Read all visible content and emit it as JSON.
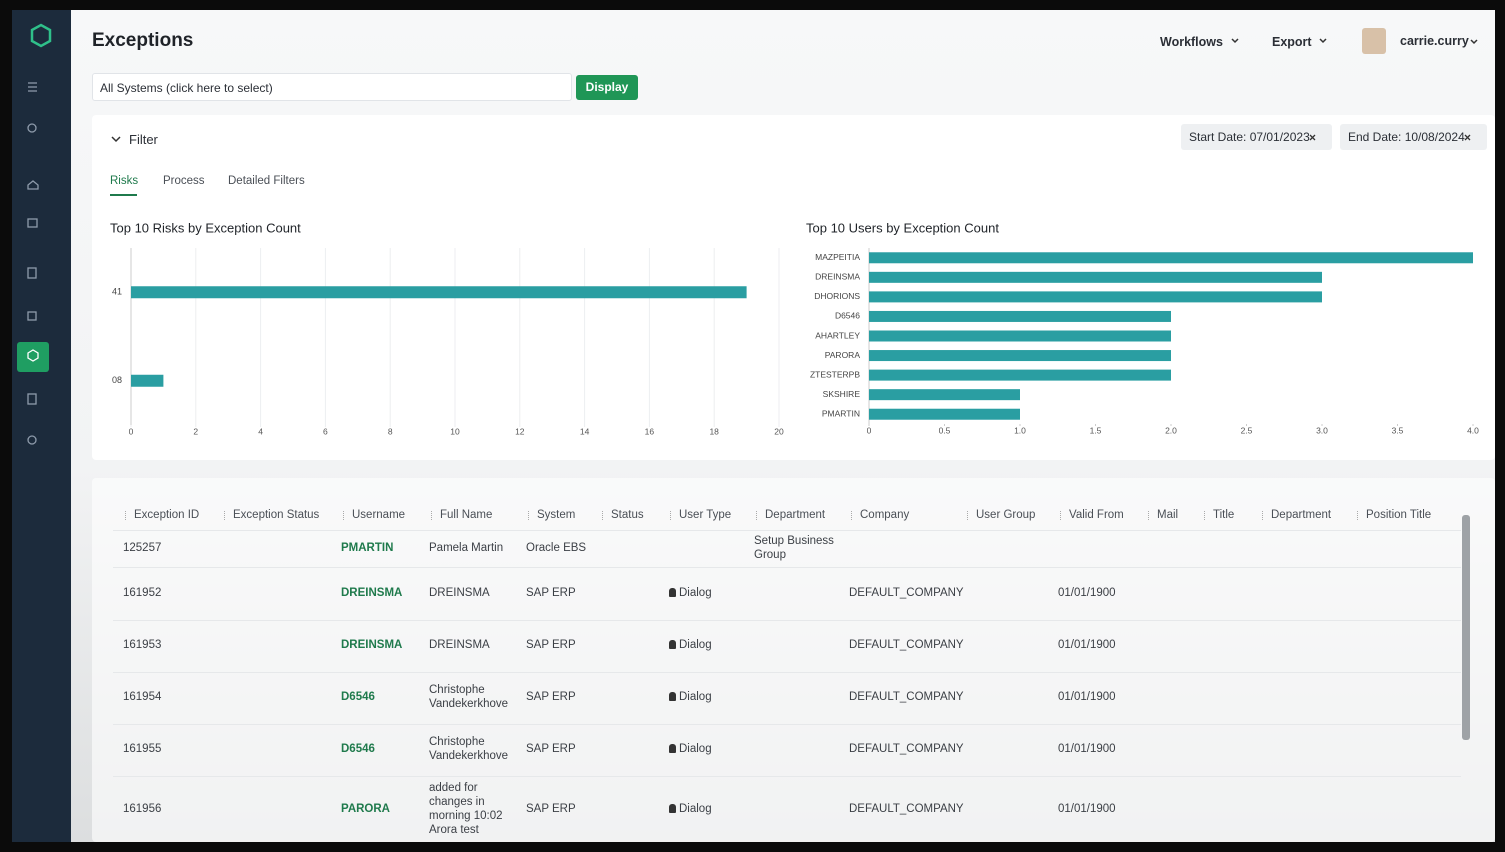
{
  "header": {
    "title": "Exceptions",
    "nav": [
      "Workflows",
      "Export"
    ],
    "user": "carrie.curry"
  },
  "toolbar": {
    "system_select": "All Systems (click here to select)",
    "button": "Display"
  },
  "filter": {
    "label": "Filter",
    "chips": [
      "Start Date: 07/01/2023",
      "End Date: 10/08/2024"
    ],
    "tabs": [
      "Risks",
      "Process",
      "Detailed Filters"
    ]
  },
  "chart_data": [
    {
      "type": "bar",
      "orientation": "horizontal",
      "title": "Top 10 Risks by Exception Count",
      "categories": [
        "41",
        "08"
      ],
      "values": [
        19,
        1
      ],
      "color": "#2a9ea2",
      "xlim": [
        0,
        20
      ],
      "xticks": [
        0,
        2,
        4,
        6,
        8,
        10,
        12,
        14,
        16,
        18,
        20
      ],
      "grid": true
    },
    {
      "type": "bar",
      "orientation": "horizontal",
      "title": "Top 10 Users by Exception Count",
      "categories": [
        "MAZPEITIA",
        "DREINSMA",
        "DHORIONS",
        "D6546",
        "AHARTLEY",
        "PARORA",
        "ZTESTERPB",
        "SKSHIRE",
        "PMARTIN"
      ],
      "values": [
        4,
        3,
        3,
        2,
        2,
        2,
        2,
        1,
        1
      ],
      "color": "#2a9ea2",
      "xlim": [
        0,
        4
      ],
      "xticks": [
        0,
        0.5,
        {
          "value": 1,
          "label": "1.0"
        },
        1.5,
        {
          "value": 2,
          "label": "2.0"
        },
        2.5,
        {
          "value": 3,
          "label": "3.0"
        },
        3.5,
        {
          "value": 4,
          "label": "4.0"
        }
      ],
      "grid": false
    }
  ],
  "table": {
    "columns": [
      "Exception ID",
      "Exception Status",
      "Username",
      "Full Name",
      "System",
      "Status",
      "User Type",
      "Department",
      "Company",
      "User Group",
      "Valid From",
      "Mail",
      "Title",
      "Department",
      "Position Title"
    ],
    "rows": [
      [
        "125257",
        null,
        "PMARTIN",
        "Pamela Martin",
        "Oracle EBS",
        null,
        null,
        "Setup Business Group",
        null,
        null,
        null,
        null,
        null,
        null,
        null
      ],
      [
        "161952",
        null,
        "DREINSMA",
        "DREINSMA",
        "SAP ERP",
        null,
        "Dialog",
        null,
        "DEFAULT_COMPANY",
        null,
        "01/01/1900",
        null,
        null,
        null,
        null
      ],
      [
        "161953",
        null,
        "DREINSMA",
        "DREINSMA",
        "SAP ERP",
        null,
        "Dialog",
        null,
        "DEFAULT_COMPANY",
        null,
        "01/01/1900",
        null,
        null,
        null,
        null
      ],
      [
        "161954",
        null,
        "D6546",
        "Christophe Vandekerkhove",
        "SAP ERP",
        null,
        "Dialog",
        null,
        "DEFAULT_COMPANY",
        null,
        "01/01/1900",
        null,
        null,
        null,
        null
      ],
      [
        "161955",
        null,
        "D6546",
        "Christophe Vandekerkhove",
        "SAP ERP",
        null,
        "Dialog",
        null,
        "DEFAULT_COMPANY",
        null,
        "01/01/1900",
        null,
        null,
        null,
        null
      ],
      [
        "161956",
        null,
        "PARORA",
        "added for changes in morning 10:02 Arora test",
        "SAP ERP",
        null,
        "Dialog",
        null,
        "DEFAULT_COMPANY",
        null,
        "01/01/1900",
        null,
        null,
        null,
        null
      ]
    ]
  }
}
